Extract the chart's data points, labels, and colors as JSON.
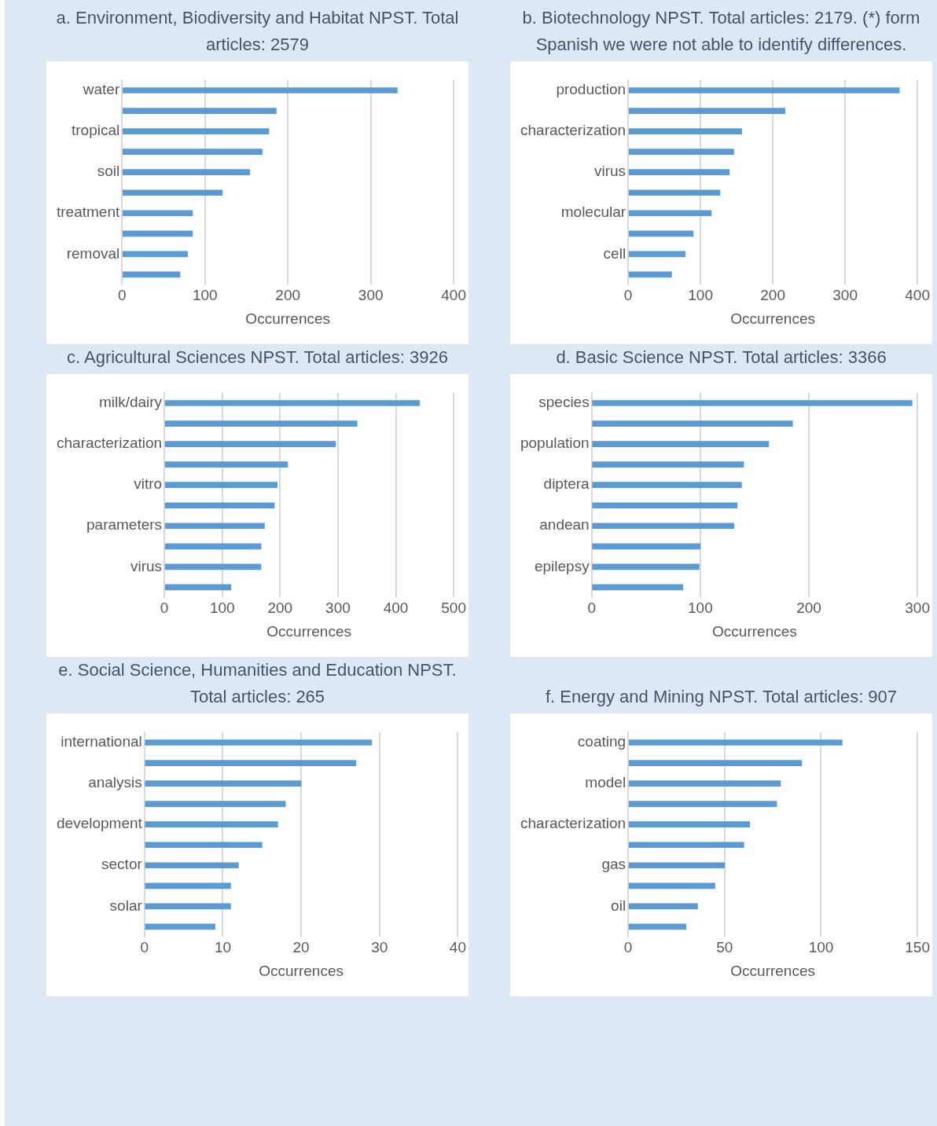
{
  "chart_data": [
    {
      "type": "bar",
      "orientation": "horizontal",
      "title": "a. Environment, Biodiversity and Habitat NPST. Total articles: 2579",
      "xlabel": "Occurrences",
      "categories": [
        "water",
        null,
        "tropical",
        null,
        "soil",
        null,
        "treatment",
        null,
        "removal",
        null
      ],
      "values": [
        332,
        186,
        177,
        169,
        154,
        121,
        85,
        85,
        79,
        70
      ],
      "color": "#5b9bd5",
      "xlim": [
        0,
        400
      ],
      "xticks": [
        0,
        100,
        200,
        300,
        400
      ],
      "grid": "x",
      "legend": false
    },
    {
      "type": "bar",
      "orientation": "horizontal",
      "title": "b. Biotechnology NPST. Total articles: 2179. (*) form Spanish we were not able to identify differences.",
      "xlabel": "Occurrences",
      "categories": [
        "production",
        null,
        "characterization",
        null,
        "virus",
        null,
        "molecular",
        null,
        "cell",
        null
      ],
      "values": [
        375,
        217,
        157,
        146,
        140,
        127,
        115,
        90,
        79,
        60
      ],
      "color": "#5b9bd5",
      "xlim": [
        0,
        400
      ],
      "xticks": [
        0,
        100,
        200,
        300,
        400
      ],
      "grid": "x",
      "legend": false
    },
    {
      "type": "bar",
      "orientation": "horizontal",
      "title": "c. Agricultural Sciences NPST. Total articles: 3926",
      "xlabel": "Occurrences",
      "categories": [
        "milk/dairy",
        null,
        "characterization",
        null,
        "vitro",
        null,
        "parameters",
        null,
        "virus",
        null
      ],
      "values": [
        441,
        333,
        296,
        213,
        195,
        190,
        173,
        167,
        167,
        115
      ],
      "color": "#5b9bd5",
      "xlim": [
        0,
        500
      ],
      "xticks": [
        0,
        100,
        200,
        300,
        400,
        500
      ],
      "grid": "x",
      "legend": false
    },
    {
      "type": "bar",
      "orientation": "horizontal",
      "title": "d. Basic Science NPST. Total articles: 3366",
      "xlabel": "Occurrences",
      "categories": [
        "species",
        null,
        "population",
        null,
        "diptera",
        null,
        "andean",
        null,
        "epilepsy",
        null
      ],
      "values": [
        295,
        185,
        163,
        140,
        138,
        134,
        131,
        100,
        99,
        84
      ],
      "color": "#5b9bd5",
      "xlim": [
        0,
        300
      ],
      "xticks": [
        0,
        100,
        200,
        300
      ],
      "grid": "x",
      "legend": false
    },
    {
      "type": "bar",
      "orientation": "horizontal",
      "title": "e. Social Science, Humanities and Education NPST. Total articles: 265",
      "xlabel": "Occurrences",
      "categories": [
        "international",
        null,
        "analysis",
        null,
        "development",
        null,
        "sector",
        null,
        "solar",
        null
      ],
      "values": [
        29,
        27,
        20,
        18,
        17,
        15,
        12,
        11,
        11,
        9
      ],
      "color": "#5b9bd5",
      "xlim": [
        0,
        40
      ],
      "xticks": [
        0,
        10,
        20,
        30,
        40
      ],
      "grid": "x",
      "legend": false
    },
    {
      "type": "bar",
      "orientation": "horizontal",
      "title": "f. Energy and Mining NPST. Total articles: 907",
      "xlabel": "Occurrences",
      "categories": [
        "coating",
        null,
        "model",
        null,
        "characterization",
        null,
        "gas",
        null,
        "oil",
        null
      ],
      "values": [
        111,
        90,
        79,
        77,
        63,
        60,
        50,
        45,
        36,
        30
      ],
      "color": "#5b9bd5",
      "xlim": [
        0,
        150
      ],
      "xticks": [
        0,
        50,
        100,
        150
      ],
      "grid": "x",
      "legend": false
    }
  ]
}
